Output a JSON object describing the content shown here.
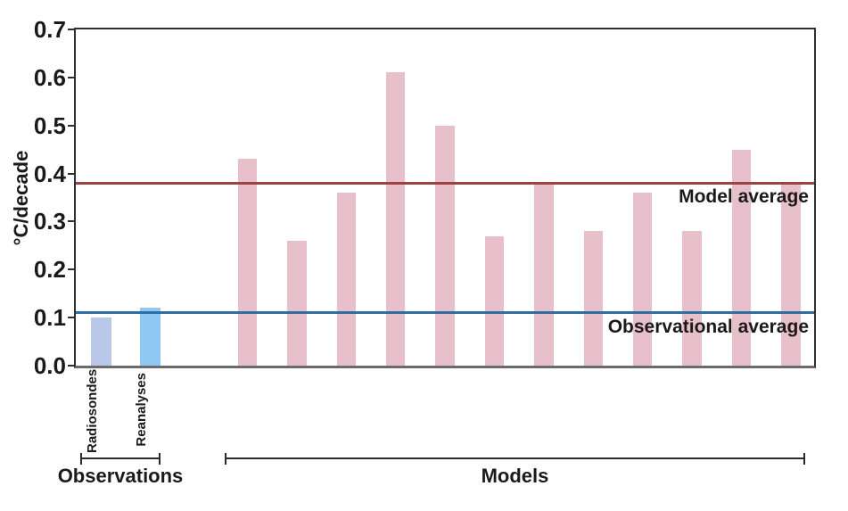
{
  "chart_data": {
    "type": "bar",
    "title": "",
    "xlabel": "",
    "ylabel": "°C/decade",
    "ylim": [
      0,
      0.7
    ],
    "ytick_labels": [
      "0.0",
      "0.1",
      "0.2",
      "0.3",
      "0.4",
      "0.5",
      "0.6",
      "0.7"
    ],
    "grid": false,
    "groups": [
      {
        "label": "Observations",
        "bars": [
          {
            "label": "Radiosondes",
            "value": 0.1,
            "color": "#b9c8e9"
          },
          {
            "label": "Reanalyses",
            "value": 0.12,
            "color": "#8fc8f2"
          }
        ]
      },
      {
        "label": "Models",
        "bar_color": "#e8c0cb",
        "values": [
          0.43,
          0.26,
          0.36,
          0.61,
          0.5,
          0.27,
          0.38,
          0.28,
          0.36,
          0.28,
          0.45,
          0.38
        ]
      }
    ],
    "reference_lines": [
      {
        "label": "Model average",
        "value": 0.38,
        "color": "#9c4240"
      },
      {
        "label": "Observational average",
        "value": 0.11,
        "color": "#2f6ea5"
      }
    ],
    "colors": {
      "axis": "#303030",
      "baseline": "#6b6b6b",
      "text": "#1a1a1a",
      "background": "#ffffff"
    }
  }
}
